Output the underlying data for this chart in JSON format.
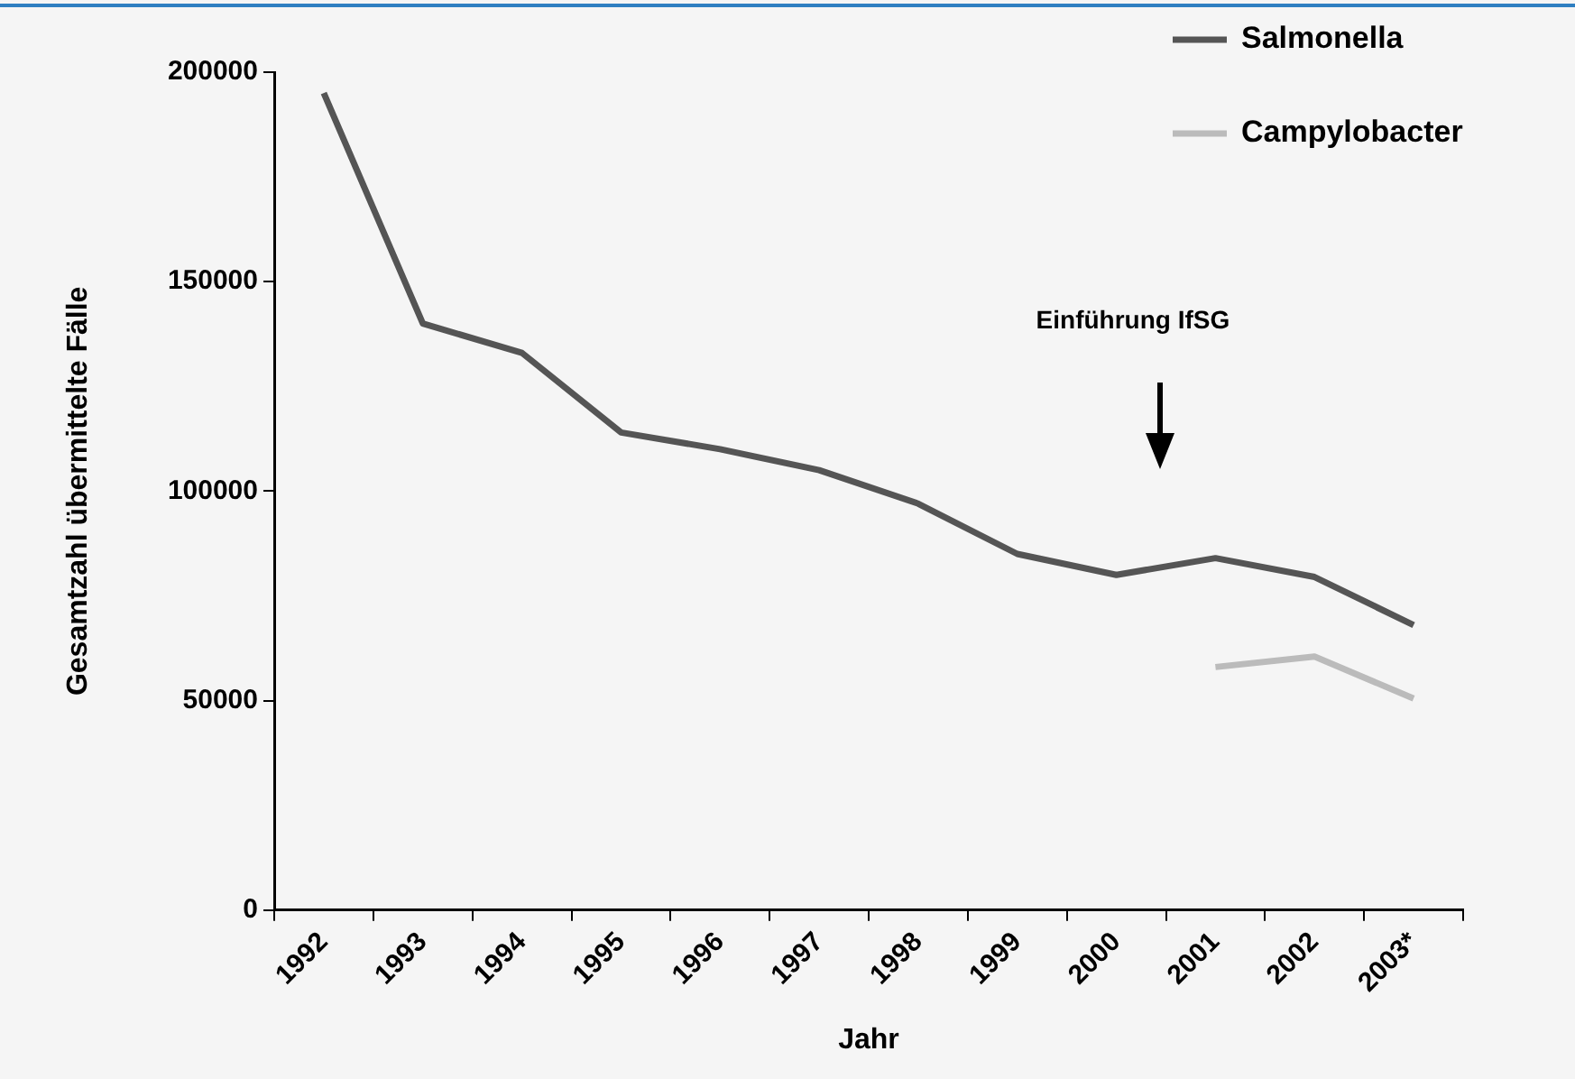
{
  "chart_data": {
    "type": "line",
    "xlabel": "Jahr",
    "ylabel": "Gesamtzahl übermittelte Fälle",
    "categories": [
      "1992",
      "1993",
      "1994",
      "1995",
      "1996",
      "1997",
      "1998",
      "1999",
      "2000",
      "2001",
      "2002",
      "2003*"
    ],
    "series": [
      {
        "name": "Salmonella",
        "color": "#555555",
        "values": [
          195000,
          140000,
          133000,
          114000,
          110000,
          105000,
          97000,
          85000,
          80000,
          84000,
          79500,
          68000
        ]
      },
      {
        "name": "Campylobacter",
        "color": "#bbbbbb",
        "values": [
          null,
          null,
          null,
          null,
          null,
          null,
          null,
          null,
          null,
          58000,
          60500,
          50500
        ]
      }
    ],
    "ylim": [
      0,
      200000
    ],
    "yticks": [
      0,
      50000,
      100000,
      150000,
      200000
    ],
    "grid": false,
    "legend": "top right",
    "marker": "none",
    "line_style": "solid",
    "annotations": [
      "Einführung IfSG"
    ]
  }
}
